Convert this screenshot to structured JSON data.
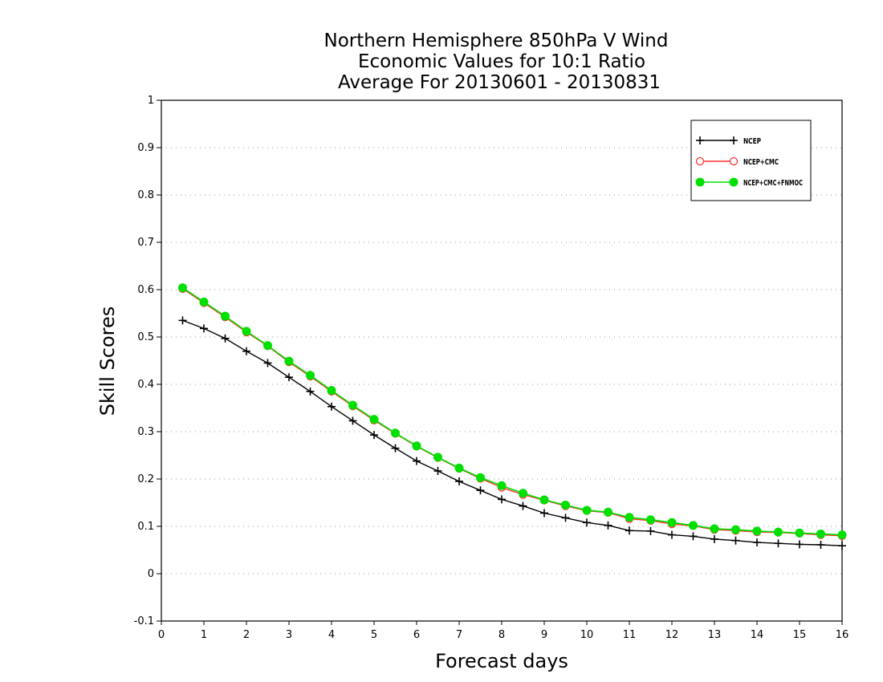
{
  "chart_data": {
    "type": "line",
    "title": [
      "Northern Hemisphere 850hPa V Wind",
      "Economic Values for 10:1 Ratio",
      "Average For 20130601 - 20130831"
    ],
    "xlabel": "Forecast days",
    "ylabel": "Skill Scores",
    "xlim": [
      0,
      16
    ],
    "ylim": [
      -0.1,
      1
    ],
    "xticks": [
      "0",
      "1",
      "2",
      "3",
      "4",
      "5",
      "6",
      "7",
      "8",
      "9",
      "10",
      "11",
      "12",
      "13",
      "14",
      "15",
      "16"
    ],
    "yticks": [
      "-0.1",
      "0",
      "0.1",
      "0.2",
      "0.3",
      "0.4",
      "0.5",
      "0.6",
      "0.7",
      "0.8",
      "0.9",
      "1"
    ],
    "grid": "horizontal-dotted",
    "legend_position": "top-right",
    "x": [
      0.5,
      1,
      1.5,
      2,
      2.5,
      3,
      3.5,
      4,
      4.5,
      5,
      5.5,
      6,
      6.5,
      7,
      7.5,
      8,
      8.5,
      9,
      9.5,
      10,
      10.5,
      11,
      11.5,
      12,
      12.5,
      13,
      13.5,
      14,
      14.5,
      15,
      15.5,
      16
    ],
    "series": [
      {
        "name": "NCEP",
        "color": "#000000",
        "marker": "plus",
        "values": [
          0.535,
          0.518,
          0.497,
          0.47,
          0.445,
          0.415,
          0.385,
          0.353,
          0.323,
          0.293,
          0.265,
          0.238,
          0.217,
          0.195,
          0.176,
          0.157,
          0.143,
          0.128,
          0.118,
          0.108,
          0.102,
          0.091,
          0.09,
          0.082,
          0.079,
          0.073,
          0.07,
          0.066,
          0.064,
          0.062,
          0.061,
          0.059
        ]
      },
      {
        "name": "NCEP+CMC",
        "color": "#ff3030",
        "marker": "open-circle",
        "values": [
          0.602,
          0.572,
          0.542,
          0.51,
          0.481,
          0.447,
          0.417,
          0.385,
          0.354,
          0.324,
          0.296,
          0.269,
          0.245,
          0.222,
          0.201,
          0.182,
          0.167,
          0.155,
          0.143,
          0.133,
          0.129,
          0.116,
          0.112,
          0.105,
          0.101,
          0.093,
          0.091,
          0.088,
          0.087,
          0.085,
          0.082,
          0.08
        ]
      },
      {
        "name": "NCEP+CMC+FNMOC",
        "color": "#00e000",
        "marker": "filled-circle",
        "values": [
          0.604,
          0.574,
          0.544,
          0.512,
          0.482,
          0.449,
          0.419,
          0.387,
          0.356,
          0.326,
          0.297,
          0.27,
          0.246,
          0.223,
          0.203,
          0.186,
          0.17,
          0.156,
          0.145,
          0.134,
          0.13,
          0.119,
          0.114,
          0.108,
          0.102,
          0.095,
          0.093,
          0.09,
          0.088,
          0.086,
          0.084,
          0.082
        ]
      }
    ]
  }
}
